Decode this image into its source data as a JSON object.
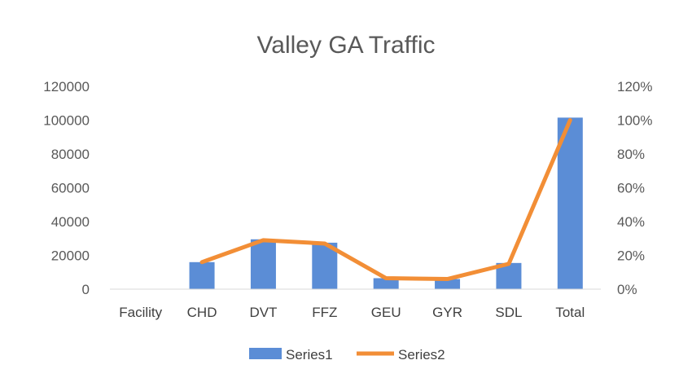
{
  "chart_data": {
    "type": "bar",
    "title": "Valley GA Traffic",
    "categories": [
      "Facility",
      "CHD",
      "DVT",
      "FFZ",
      "GEU",
      "GYR",
      "SDL",
      "Total"
    ],
    "series": [
      {
        "name": "Series1",
        "type": "bar",
        "axis": "left",
        "color": "#5b8dd6",
        "values": [
          null,
          16000,
          29500,
          27500,
          6500,
          6000,
          15500,
          101500
        ]
      },
      {
        "name": "Series2",
        "type": "line",
        "axis": "right",
        "color": "#f28e36",
        "values": [
          null,
          0.16,
          0.29,
          0.27,
          0.065,
          0.06,
          0.15,
          1.0
        ]
      }
    ],
    "ylim_left": [
      0,
      120000
    ],
    "yticks_left": [
      "0",
      "20000",
      "40000",
      "60000",
      "80000",
      "100000",
      "120000"
    ],
    "ylim_right": [
      0,
      1.2
    ],
    "yticks_right": [
      "0%",
      "20%",
      "40%",
      "60%",
      "80%",
      "100%",
      "120%"
    ],
    "grid": false,
    "legend_position": "bottom",
    "xlabel": "",
    "ylabel": ""
  }
}
